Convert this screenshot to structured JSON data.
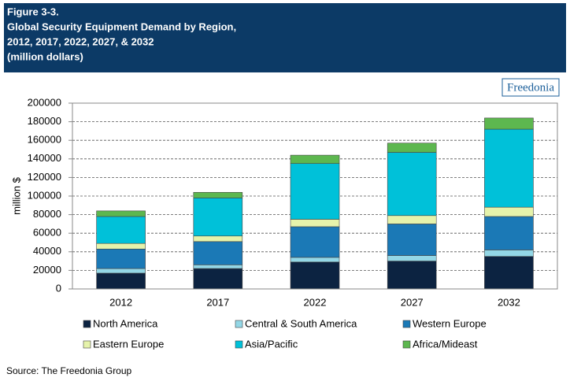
{
  "chart_data": {
    "type": "stacked_bar",
    "title_lines": [
      "Figure 3-3.",
      "Global Security Equipment Demand by Region,",
      "2012, 2017, 2022, 2027, & 2032",
      "(million dollars)"
    ],
    "y_label": "million $",
    "categories": [
      "2012",
      "2017",
      "2022",
      "2027",
      "2032"
    ],
    "series": [
      {
        "name": "North America",
        "color": "#0c2341",
        "values": [
          17000,
          22000,
          29000,
          30000,
          35000
        ]
      },
      {
        "name": "Central & South America",
        "color": "#93d7e6",
        "values": [
          5000,
          4000,
          5000,
          6000,
          7000
        ]
      },
      {
        "name": "Western Europe",
        "color": "#1b79b6",
        "values": [
          21000,
          25000,
          33000,
          34000,
          36000
        ]
      },
      {
        "name": "Eastern Europe",
        "color": "#e6f3ab",
        "values": [
          6000,
          6000,
          8000,
          9000,
          10000
        ]
      },
      {
        "name": "Asia/Pacific",
        "color": "#00c1d9",
        "values": [
          29000,
          41000,
          60000,
          68000,
          84000
        ]
      },
      {
        "name": "Africa/Mideast",
        "color": "#5db74f",
        "values": [
          6000,
          6000,
          9000,
          10000,
          12000
        ]
      }
    ],
    "ylim": [
      0,
      200000
    ],
    "yticks": [
      0,
      20000,
      40000,
      60000,
      80000,
      100000,
      120000,
      140000,
      160000,
      180000,
      200000
    ],
    "grid": true
  },
  "logo": "Freedonia",
  "source": "Source: The Freedonia Group"
}
